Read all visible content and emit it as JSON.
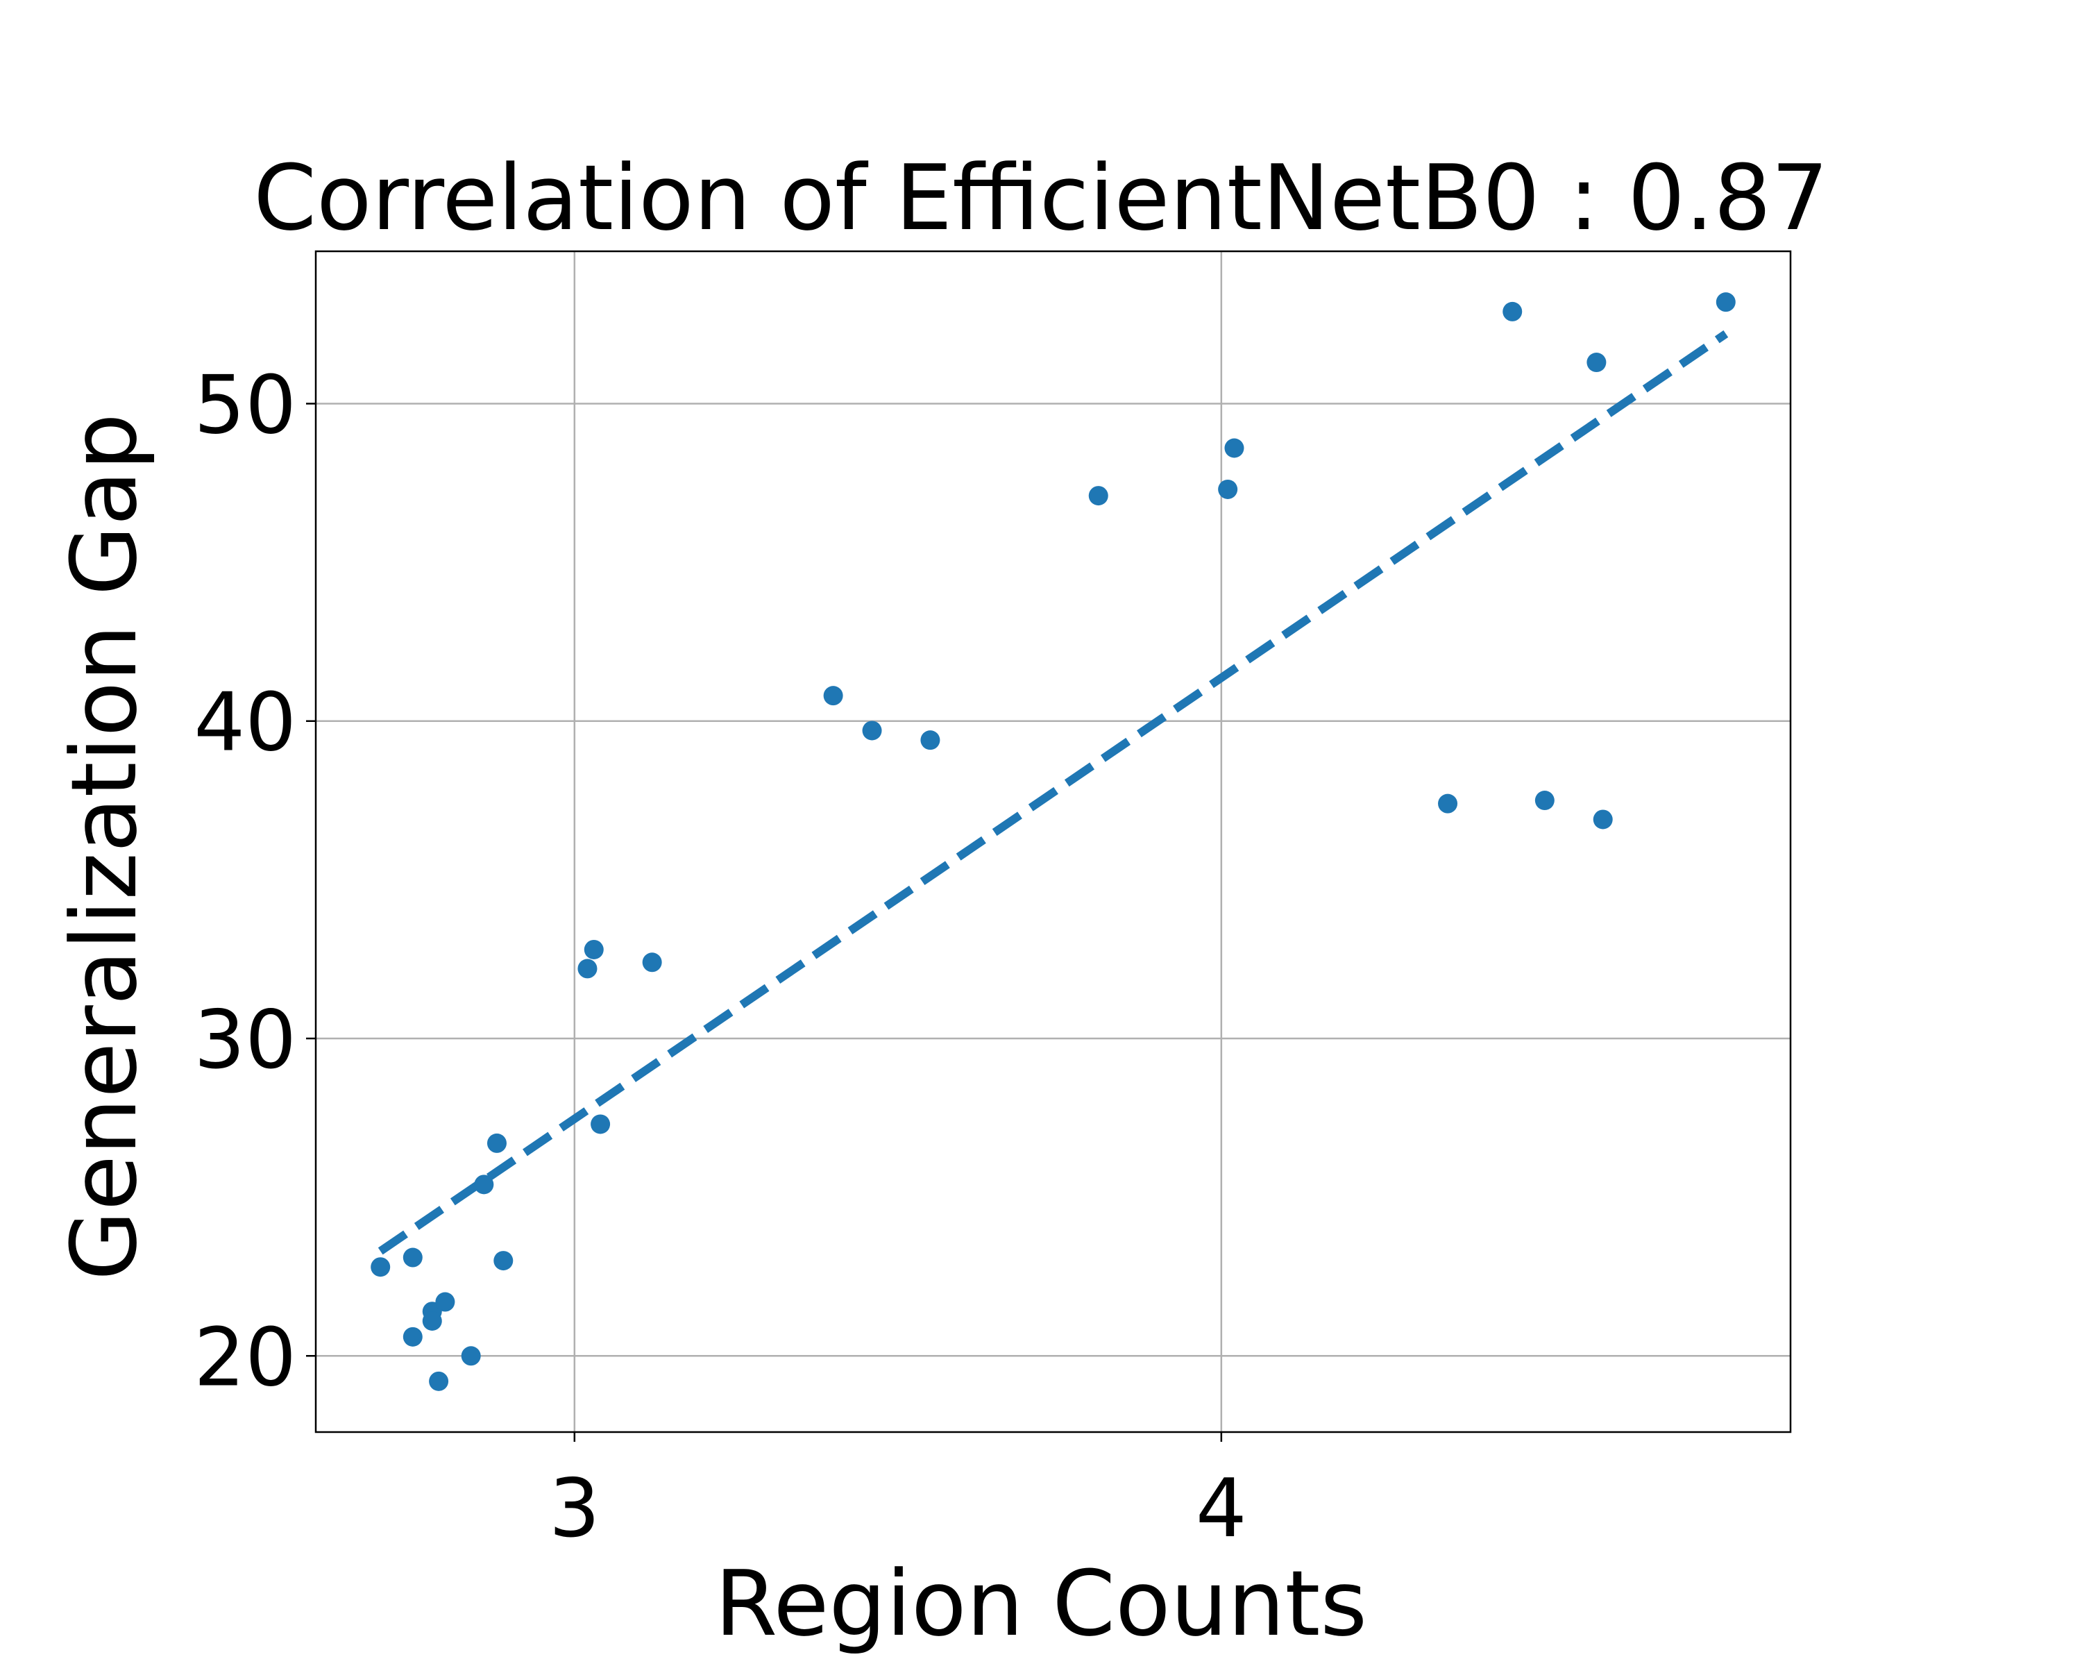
{
  "chart_data": {
    "type": "scatter",
    "title": "Correlation of EfficientNetB0 : 0.87",
    "xlabel": "Region Counts",
    "ylabel": "Generalization Gap",
    "xlim": [
      2.6,
      4.88
    ],
    "ylim": [
      17.6,
      54.8
    ],
    "xticks": [
      3,
      4
    ],
    "yticks": [
      20,
      30,
      40,
      50
    ],
    "grid": true,
    "colors": {
      "points": "#1f77b4",
      "fit": "#1f77b4"
    },
    "series": [
      {
        "marker": "dot",
        "x": [
          2.7,
          2.75,
          2.75,
          2.78,
          2.78,
          2.79,
          2.8,
          2.84,
          2.86,
          2.88,
          2.89,
          3.02,
          3.03,
          3.04,
          3.12,
          3.4,
          3.46,
          3.55,
          3.81,
          4.01,
          4.02,
          4.35,
          4.45,
          4.5,
          4.58,
          4.59,
          4.78
        ],
        "y": [
          22.8,
          23.1,
          20.6,
          21.4,
          21.1,
          19.2,
          21.7,
          20.0,
          25.4,
          26.7,
          23.0,
          32.2,
          32.8,
          27.3,
          32.4,
          40.8,
          39.7,
          39.4,
          47.1,
          47.3,
          48.6,
          37.4,
          52.9,
          37.5,
          51.3,
          36.9,
          53.2
        ]
      },
      {
        "style": "dashed",
        "x": [
          2.7,
          4.78
        ],
        "y": [
          23.3,
          52.2
        ]
      }
    ]
  }
}
